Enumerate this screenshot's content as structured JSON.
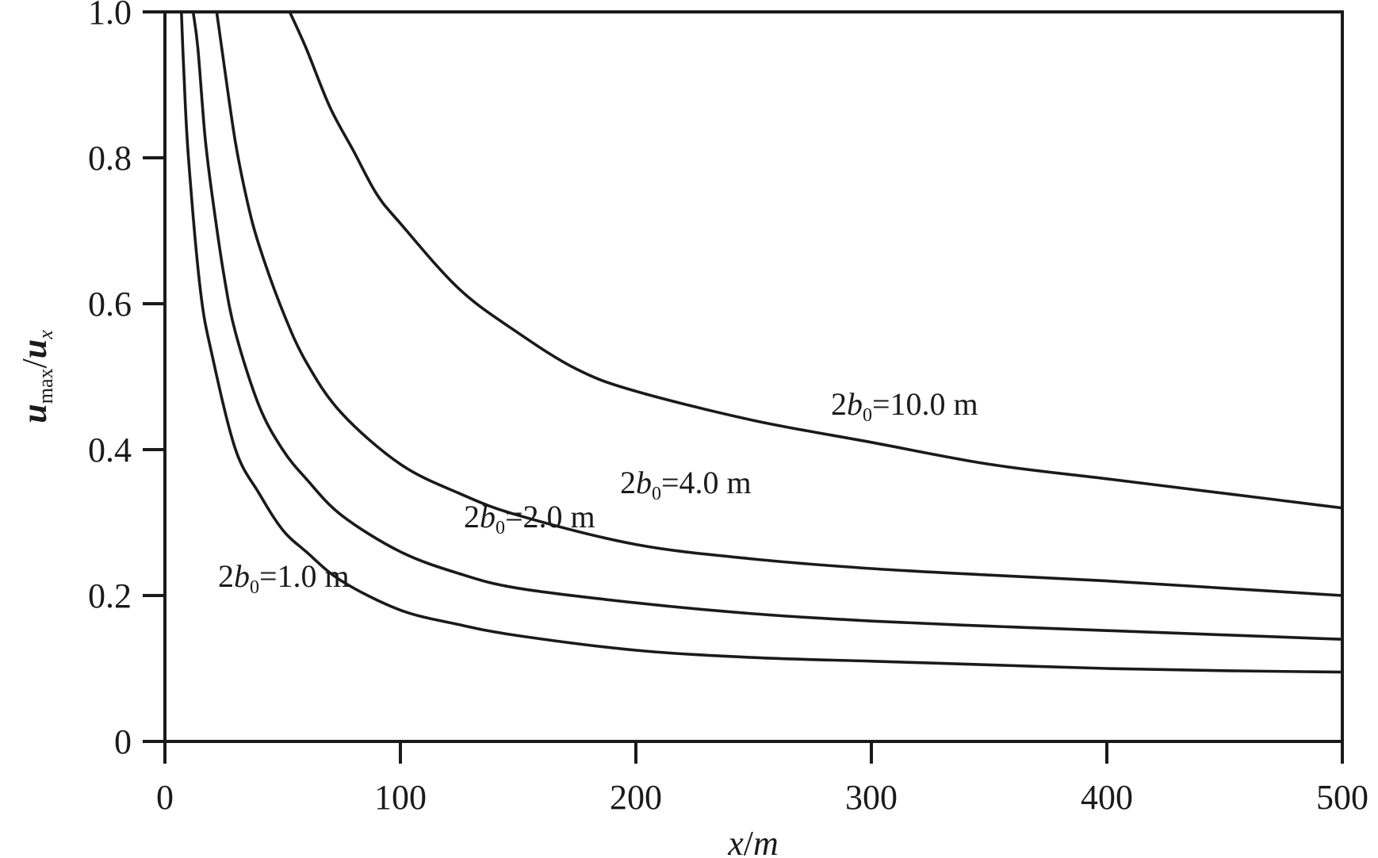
{
  "chart_data": {
    "type": "line",
    "title": "",
    "xlabel": "x/m",
    "ylabel": "u_max/u_x",
    "ylabel_parts": {
      "base": "u",
      "sub": "max",
      "sep": "/",
      "base2": "u",
      "sub2": "x"
    },
    "xlabel_parts": {
      "var": "x",
      "sep": "/",
      "unit": "m"
    },
    "xlim": [
      0,
      500
    ],
    "ylim": [
      0,
      1.0
    ],
    "x_ticks": [
      "0",
      "100",
      "200",
      "300",
      "400",
      "500"
    ],
    "y_ticks": [
      "0",
      "0.2",
      "0.4",
      "0.6",
      "0.8",
      "1.0"
    ],
    "grid": false,
    "legend": "inline labels on curves",
    "series": [
      {
        "name": "2b0=1.0 m",
        "label_parts": {
          "pre": "2",
          "var": "b",
          "sub": "0",
          "post": "=1.0 m"
        },
        "x": [
          7,
          8,
          10,
          15,
          20,
          30,
          40,
          50,
          60,
          75,
          100,
          125,
          150,
          200,
          250,
          300,
          350,
          400,
          450,
          500
        ],
        "y": [
          1.0,
          0.92,
          0.8,
          0.62,
          0.53,
          0.4,
          0.34,
          0.29,
          0.26,
          0.22,
          0.18,
          0.16,
          0.145,
          0.125,
          0.115,
          0.11,
          0.105,
          0.1,
          0.097,
          0.095
        ]
      },
      {
        "name": "2b0=2.0 m",
        "label_parts": {
          "pre": "2",
          "var": "b",
          "sub": "0",
          "post": "=2.0 m"
        },
        "x": [
          12,
          14,
          17,
          20,
          25,
          30,
          40,
          50,
          60,
          75,
          100,
          125,
          150,
          200,
          250,
          300,
          350,
          400,
          450,
          500
        ],
        "y": [
          1.0,
          0.95,
          0.83,
          0.75,
          0.64,
          0.56,
          0.46,
          0.4,
          0.36,
          0.31,
          0.26,
          0.23,
          0.21,
          0.19,
          0.175,
          0.165,
          0.158,
          0.152,
          0.146,
          0.14
        ]
      },
      {
        "name": "2b0=4.0 m",
        "label_parts": {
          "pre": "2",
          "var": "b",
          "sub": "0",
          "post": "=4.0 m"
        },
        "x": [
          22,
          25,
          30,
          35,
          40,
          50,
          60,
          75,
          100,
          125,
          150,
          200,
          250,
          300,
          350,
          400,
          450,
          500
        ],
        "y": [
          1.0,
          0.93,
          0.82,
          0.74,
          0.68,
          0.59,
          0.52,
          0.45,
          0.38,
          0.34,
          0.31,
          0.27,
          0.25,
          0.237,
          0.228,
          0.22,
          0.21,
          0.2
        ]
      },
      {
        "name": "2b0=10.0 m",
        "label_parts": {
          "pre": "2",
          "var": "b",
          "sub": "0",
          "post": "=10.0 m"
        },
        "x": [
          53,
          60,
          70,
          80,
          90,
          100,
          125,
          150,
          175,
          200,
          250,
          300,
          350,
          400,
          450,
          500
        ],
        "y": [
          1.0,
          0.95,
          0.87,
          0.81,
          0.75,
          0.71,
          0.62,
          0.56,
          0.51,
          0.48,
          0.44,
          0.41,
          0.38,
          0.36,
          0.34,
          0.32
        ]
      }
    ]
  }
}
